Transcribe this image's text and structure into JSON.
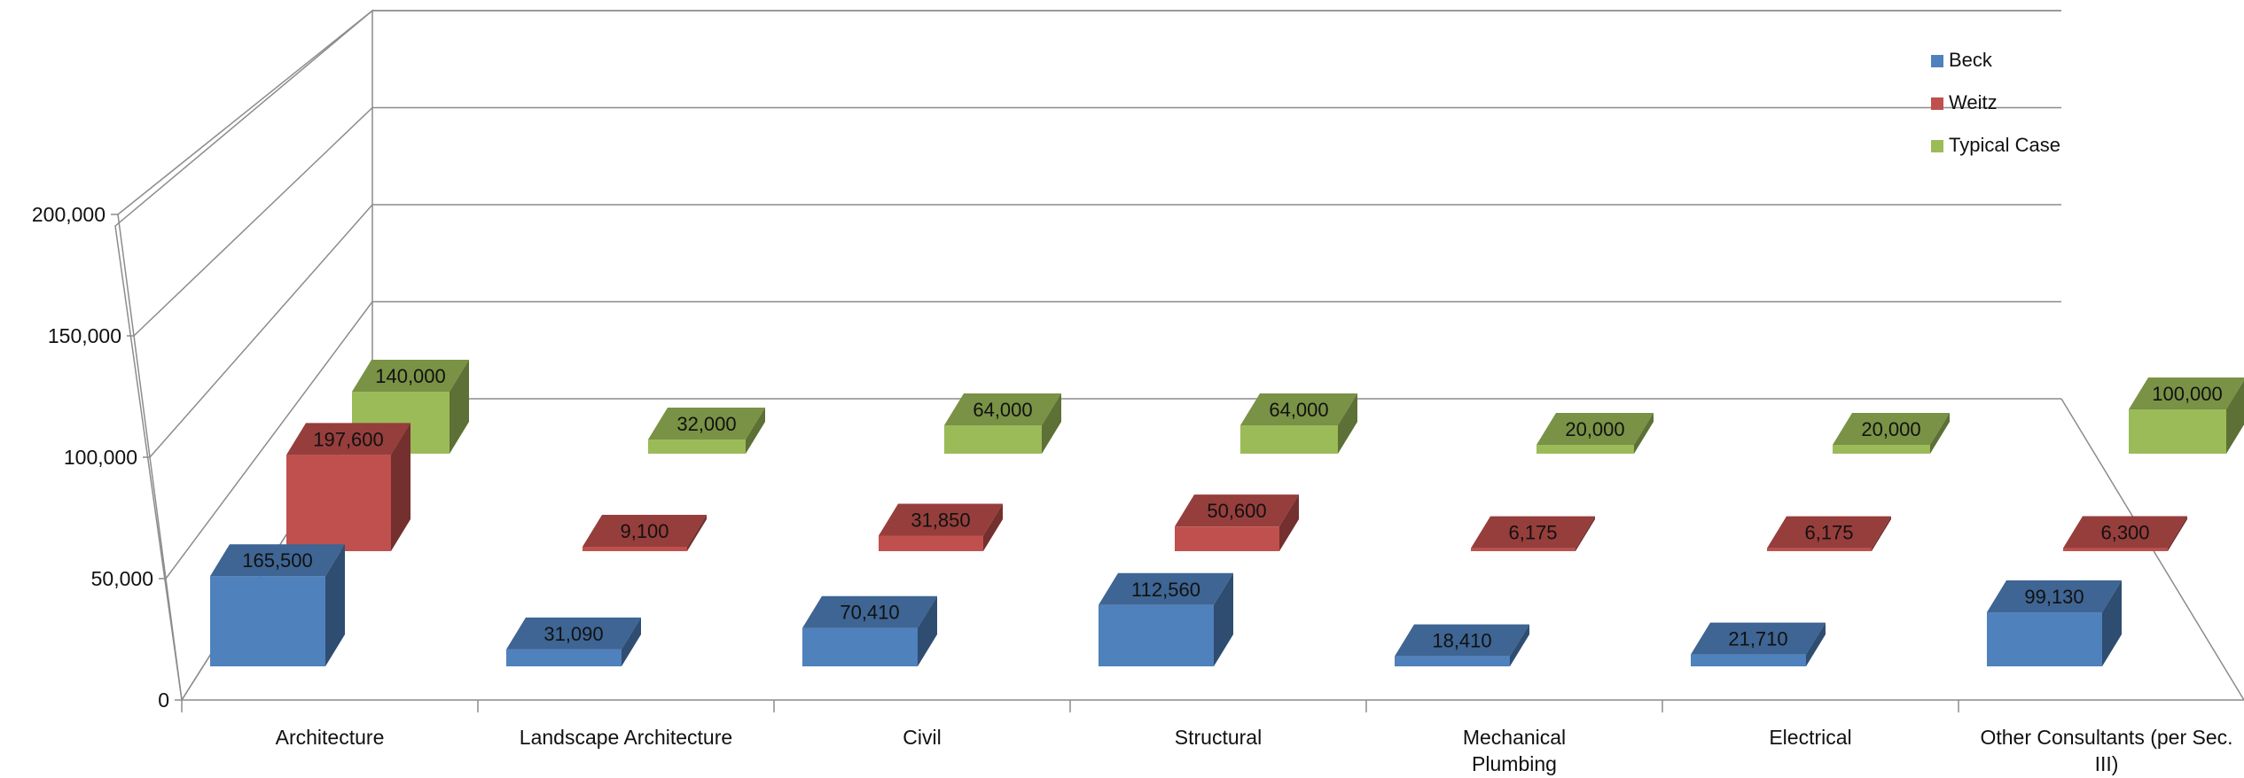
{
  "chart_data": {
    "type": "bar",
    "style": "3d-clustered-column",
    "categories": [
      "Architecture",
      "Landscape Architecture",
      "Civil",
      "Structural",
      "Mechanical Plumbing",
      "Electrical",
      "Other Consultants (per Sec. III)"
    ],
    "series": [
      {
        "name": "Beck",
        "color": "#4F81BD",
        "values": [
          165500,
          31090,
          70410,
          112560,
          18410,
          21710,
          99130
        ]
      },
      {
        "name": "Weitz",
        "color": "#C0504D",
        "values": [
          197600,
          9100,
          31850,
          50600,
          6175,
          6175,
          6300
        ]
      },
      {
        "name": "Typical Case",
        "color": "#9BBB59",
        "values": [
          140000,
          32000,
          64000,
          64000,
          20000,
          20000,
          100000
        ]
      }
    ],
    "y_ticks": [
      "0",
      "50,000",
      "100,000",
      "150,000",
      "200,000"
    ],
    "ylim": [
      0,
      200000
    ],
    "grid": true,
    "legend_position": "top-right",
    "title": "",
    "xlabel": "",
    "ylabel": ""
  }
}
